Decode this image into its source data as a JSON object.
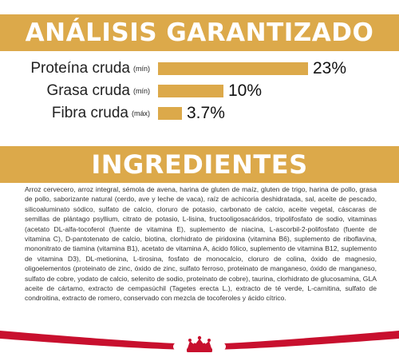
{
  "analysis": {
    "title": "ANÁLISIS GARANTIZADO",
    "rows": [
      {
        "name": "Proteína cruda",
        "qualifier": "(mín)",
        "value": "23%",
        "fraction": 1.0
      },
      {
        "name": "Grasa cruda",
        "qualifier": "(mín)",
        "value": "10%",
        "fraction": 0.435
      },
      {
        "name": "Fibra cruda",
        "qualifier": "(máx)",
        "value": "3.7%",
        "fraction": 0.161
      }
    ]
  },
  "ingredients": {
    "title": "INGREDIENTES",
    "text": "Arroz cervecero, arroz integral, sémola de avena, harina de gluten de maíz, gluten de trigo, harina de pollo, grasa de pollo, saborizante natural (cerdo, ave y leche de vaca), raíz de achicoria deshidratada, sal, aceite de pescado, silicoaluminato sódico, sulfato de calcio, cloruro de potasio, carbonato de calcio, aceite vegetal, cáscaras de semillas de plántago psyllium, citrato de potasio, L-lisina, fructooligosacáridos, tripolifosfato de sodio, vitaminas (acetato DL-alfa-tocoferol (fuente de vitamina E), suplemento de niacina, L-ascorbil-2-polifosfato (fuente de vitamina C), D-pantotenato de calcio, biotina, clorhidrato de piridoxina (vitamina B6), suplemento de riboflavina, mononitrato de tiamina (vitamina B1), acetato de vitamina A, ácido fólico, suplemento de vitamina B12, suplemento de vitamina D3), DL-metionina, L-tirosina, fosfato de monocalcio, cloruro de colina, óxido de magnesio, oligoelementos (proteinato de zinc, óxido de zinc, sulfato ferroso, proteinato de manganeso, óxido de manganeso, sulfato de cobre, yodato de calcio, selenito de sodio, proteinato de cobre), taurina, clorhidrato de glucosamina, GLA aceite de cártamo, extracto de cempasúchil (Tagetes erecta L.), extracto de té verde, L-carnitina, sulfato de condroitina, extracto de romero, conservado con mezcla de tocoferoles y ácido cítrico."
  },
  "footer": {
    "logo_icon": "royal-crown-logo-icon",
    "accent_color": "#c8102e",
    "banner_color": "#dca94a"
  }
}
